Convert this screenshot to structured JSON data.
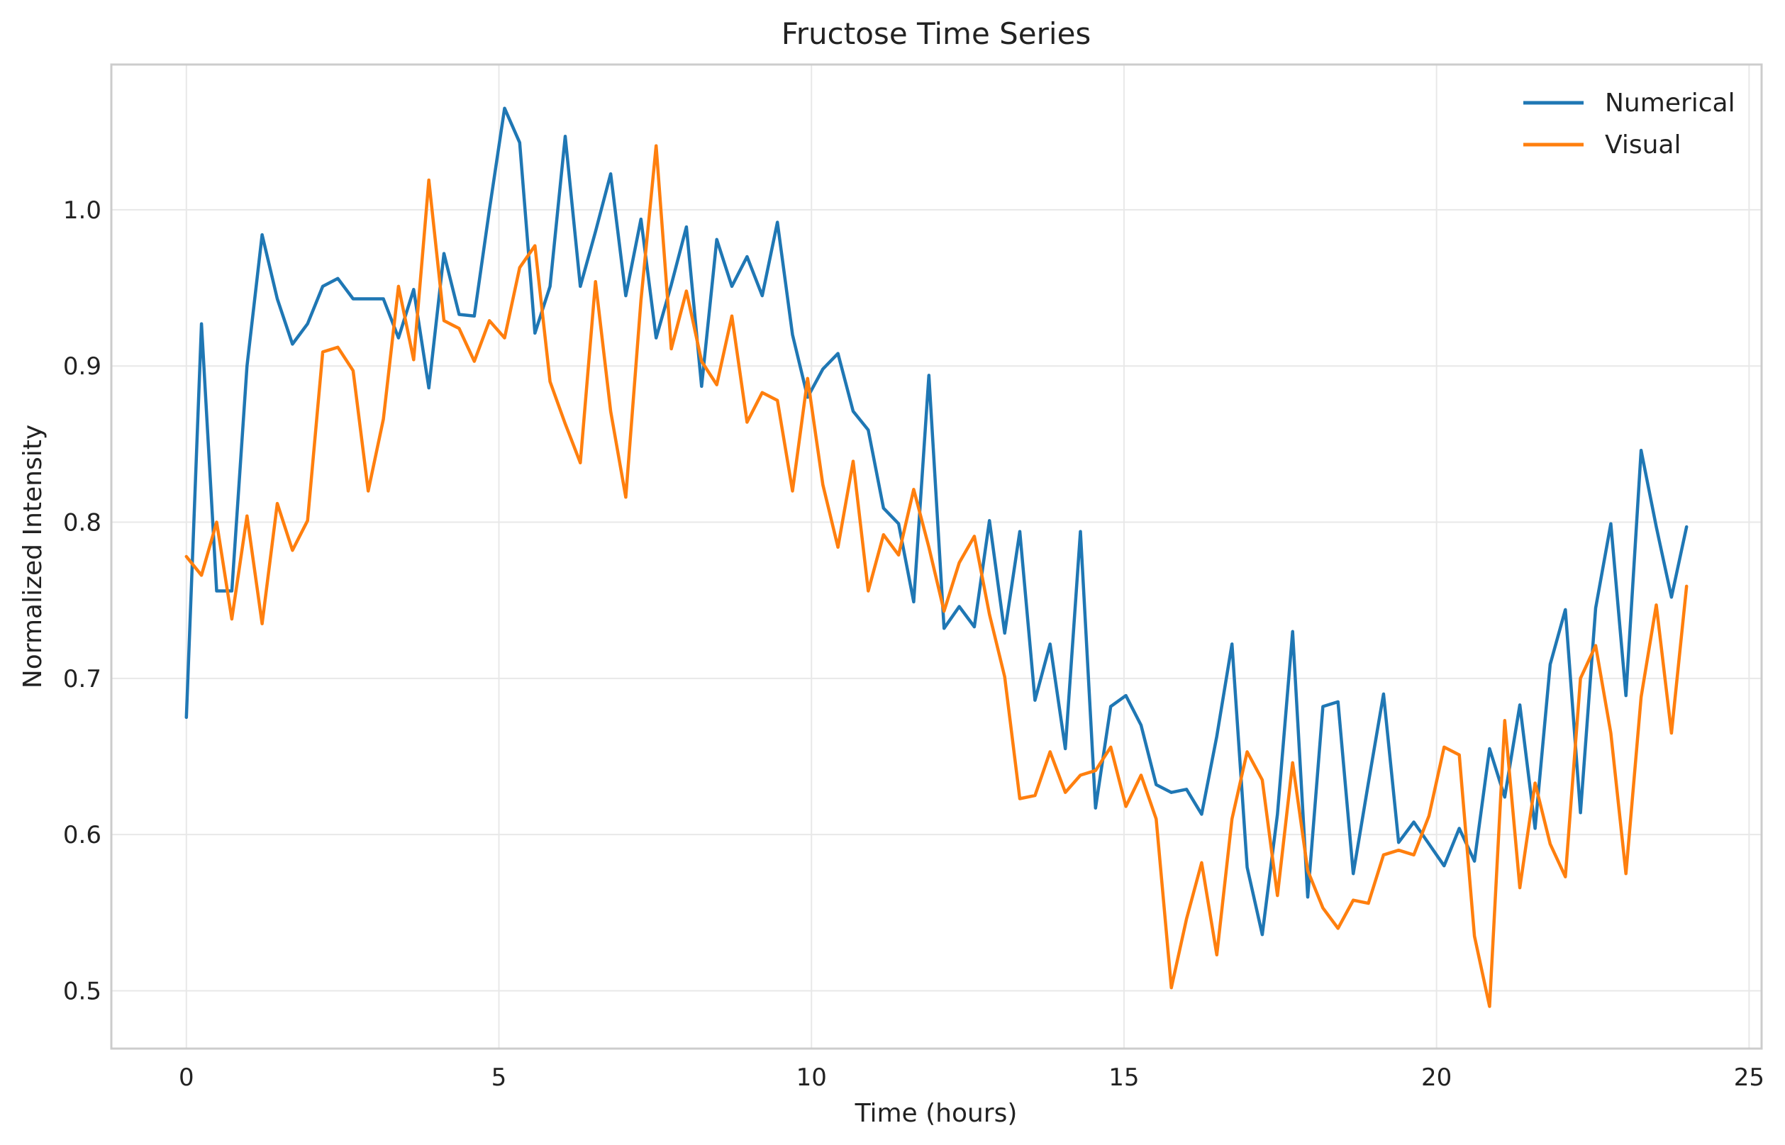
{
  "chart_data": {
    "type": "line",
    "title": "Fructose Time Series",
    "xlabel": "Time (hours)",
    "ylabel": "Normalized Intensity",
    "xlim": [
      -1.2,
      25.2
    ],
    "ylim": [
      0.463,
      1.093
    ],
    "xticks": [
      0,
      5,
      10,
      15,
      20,
      25
    ],
    "yticks": [
      0.5,
      0.6,
      0.7,
      0.8,
      0.9,
      1.0
    ],
    "xtick_labels": [
      "0",
      "5",
      "10",
      "15",
      "20",
      "25"
    ],
    "ytick_labels": [
      "0.5",
      "0.6",
      "0.7",
      "0.8",
      "0.9",
      "1.0"
    ],
    "grid": true,
    "legend_position": "top-right",
    "x": [
      0.0,
      0.242,
      0.485,
      0.727,
      0.97,
      1.212,
      1.455,
      1.697,
      1.939,
      2.182,
      2.424,
      2.667,
      2.909,
      3.152,
      3.394,
      3.636,
      3.879,
      4.121,
      4.364,
      4.606,
      4.848,
      5.091,
      5.333,
      5.576,
      5.818,
      6.061,
      6.303,
      6.545,
      6.788,
      7.03,
      7.273,
      7.515,
      7.758,
      8.0,
      8.242,
      8.485,
      8.727,
      8.97,
      9.212,
      9.455,
      9.697,
      9.939,
      10.182,
      10.424,
      10.667,
      10.909,
      11.152,
      11.394,
      11.636,
      11.879,
      12.121,
      12.364,
      12.606,
      12.848,
      13.091,
      13.333,
      13.576,
      13.818,
      14.061,
      14.303,
      14.545,
      14.788,
      15.03,
      15.273,
      15.515,
      15.758,
      16.0,
      16.242,
      16.485,
      16.727,
      16.97,
      17.212,
      17.455,
      17.697,
      17.939,
      18.182,
      18.424,
      18.667,
      18.909,
      19.152,
      19.394,
      19.636,
      19.879,
      20.121,
      20.364,
      20.606,
      20.848,
      21.091,
      21.333,
      21.576,
      21.818,
      22.061,
      22.303,
      22.545,
      22.788,
      23.03,
      23.273,
      23.515,
      23.758,
      24.0
    ],
    "series": [
      {
        "name": "Numerical",
        "color": "#1f77b4",
        "values": [
          0.675,
          0.927,
          0.756,
          0.756,
          0.9,
          0.984,
          0.943,
          0.914,
          0.927,
          0.951,
          0.956,
          0.943,
          0.943,
          0.943,
          0.918,
          0.949,
          0.886,
          0.972,
          0.933,
          0.932,
          1.0,
          1.065,
          1.043,
          0.921,
          0.951,
          1.047,
          0.951,
          0.986,
          1.023,
          0.945,
          0.994,
          0.918,
          0.952,
          0.989,
          0.887,
          0.981,
          0.951,
          0.97,
          0.945,
          0.992,
          0.92,
          0.88,
          0.898,
          0.908,
          0.871,
          0.859,
          0.809,
          0.799,
          0.749,
          0.894,
          0.732,
          0.746,
          0.733,
          0.801,
          0.729,
          0.794,
          0.686,
          0.722,
          0.655,
          0.794,
          0.617,
          0.682,
          0.689,
          0.67,
          0.632,
          0.627,
          0.629,
          0.613,
          0.663,
          0.722,
          0.579,
          0.536,
          0.613,
          0.73,
          0.56,
          0.682,
          0.685,
          0.575,
          0.633,
          0.69,
          0.595,
          0.608,
          0.594,
          0.58,
          0.604,
          0.583,
          0.655,
          0.624,
          0.683,
          0.604,
          0.709,
          0.744,
          0.614,
          0.745,
          0.799,
          0.689,
          0.846,
          0.797,
          0.752,
          0.797
        ]
      },
      {
        "name": "Visual",
        "color": "#ff7f0e",
        "values": [
          0.778,
          0.766,
          0.8,
          0.738,
          0.804,
          0.735,
          0.812,
          0.782,
          0.801,
          0.909,
          0.912,
          0.897,
          0.82,
          0.866,
          0.951,
          0.904,
          1.019,
          0.929,
          0.924,
          0.903,
          0.929,
          0.918,
          0.963,
          0.977,
          0.89,
          0.863,
          0.838,
          0.954,
          0.871,
          0.816,
          0.942,
          1.041,
          0.911,
          0.948,
          0.903,
          0.888,
          0.932,
          0.864,
          0.883,
          0.878,
          0.82,
          0.892,
          0.824,
          0.784,
          0.839,
          0.756,
          0.792,
          0.779,
          0.821,
          0.784,
          0.743,
          0.774,
          0.791,
          0.741,
          0.701,
          0.623,
          0.625,
          0.653,
          0.627,
          0.638,
          0.641,
          0.656,
          0.618,
          0.638,
          0.61,
          0.502,
          0.546,
          0.582,
          0.523,
          0.61,
          0.653,
          0.635,
          0.561,
          0.646,
          0.577,
          0.553,
          0.54,
          0.558,
          0.556,
          0.587,
          0.59,
          0.587,
          0.612,
          0.656,
          0.651,
          0.535,
          0.49,
          0.673,
          0.566,
          0.633,
          0.594,
          0.573,
          0.7,
          0.721,
          0.665,
          0.575,
          0.688,
          0.747,
          0.665,
          0.759
        ]
      }
    ]
  }
}
